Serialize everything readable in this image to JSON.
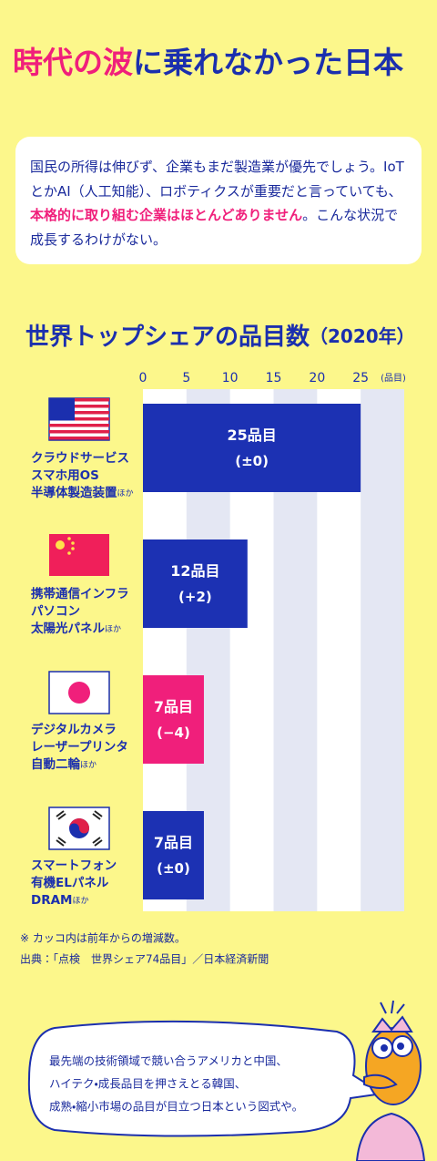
{
  "header": {
    "title_accent": "時代の波",
    "title_rest": "に乗れなかった日本"
  },
  "intro": {
    "text_before": "国民の所得は伸びず、企業もまだ製造業が優先でしょう。IoTとかAI（人工知能）、ロボティクスが重要だと言っていても、",
    "highlight": "本格的に取り組む企業はほとんどありません",
    "text_after": "。こんな状況で成長するわけがない。"
  },
  "chart_data": {
    "type": "bar",
    "orientation": "horizontal",
    "title": "世界トップシェアの品目数",
    "title_note": "（2020年）",
    "x_unit": "(品目)",
    "categories": [
      [
        "クラウドサービス",
        "スマホ用OS",
        "半導体製造装置"
      ],
      [
        "携帯通信インフラ",
        "パソコン",
        "太陽光パネル"
      ],
      [
        "デジタルカメラ",
        "レーザープリンタ",
        "自動二輪"
      ],
      [
        "スマートフォン",
        "有機ELパネル",
        "DRAM"
      ]
    ],
    "category_suffix": "ほか",
    "values": [
      25,
      12,
      7,
      7
    ],
    "value_labels": [
      "25品目",
      "12品目",
      "7品目",
      "7品目"
    ],
    "changes": [
      0,
      2,
      -4,
      0
    ],
    "change_labels": [
      "(±0)",
      "(+2)",
      "(−4)",
      "(±0)"
    ],
    "color": "#1c31b3",
    "negative_color": "#f01f7b",
    "xlim": [
      0,
      30
    ],
    "xticks": [
      0,
      5,
      10,
      15,
      20,
      25
    ],
    "grid": true
  },
  "notes": [
    "※ カッコ内は前年からの増減数。",
    "出典：「点検　世界シェア74品目」／日本経済新聞"
  ],
  "bubble": [
    "最先端の技術領域で競い合うアメリカと中国、",
    "ハイテク・成長品目を押さえとる韓国、",
    "成熟・縮小市場の品目が目立つ日本という図式や。"
  ]
}
